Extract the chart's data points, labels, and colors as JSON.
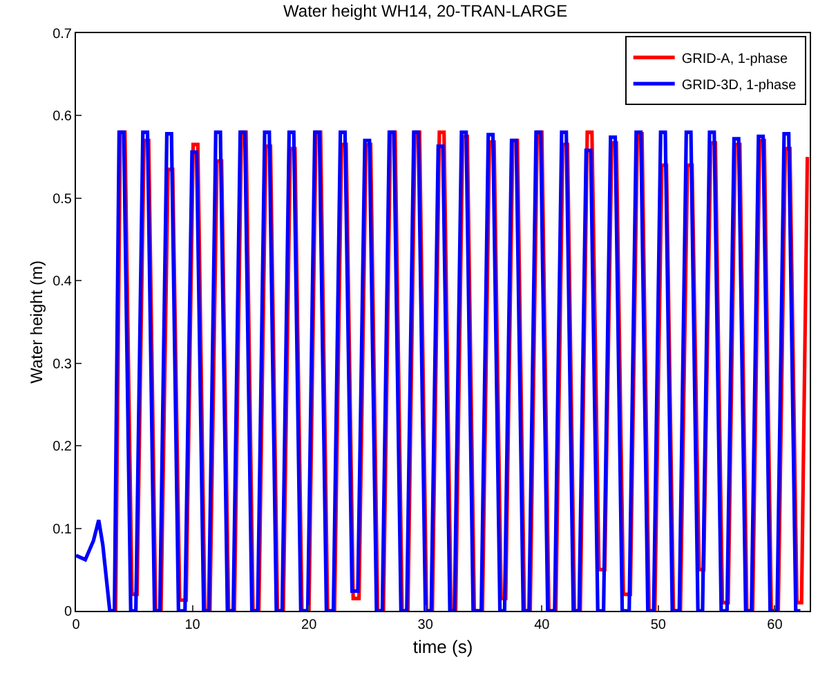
{
  "chart_data": {
    "type": "line",
    "title": "Water height WH14, 20-TRAN-LARGE",
    "xlabel": "time (s)",
    "ylabel": "Water height (m)",
    "xlim": [
      0,
      63
    ],
    "xticks": [
      0,
      10,
      20,
      30,
      40,
      50,
      60
    ],
    "ylim": [
      0,
      0.7
    ],
    "yticks": [
      0,
      0.1,
      0.2,
      0.3,
      0.4,
      0.5,
      0.6,
      0.7
    ],
    "legend": "top right",
    "marker": "none",
    "line_style": "solid",
    "series": [
      {
        "name": "GRID-A, 1-phase",
        "color": "#ff0000",
        "x": [
          2.9,
          3.4,
          3.8,
          4.2,
          4.8,
          5.24,
          5.84,
          6.24,
          6.84,
          7.3,
          7.9,
          8.3,
          8.9,
          9.46,
          10.06,
          10.46,
          11.06,
          11.5,
          12.1,
          12.5,
          13.1,
          13.6,
          14.2,
          14.6,
          15.2,
          15.7,
          16.3,
          16.7,
          17.3,
          17.8,
          18.4,
          18.8,
          19.4,
          20.0,
          20.6,
          21.0,
          21.6,
          22.2,
          22.8,
          23.2,
          23.8,
          24.3,
          24.9,
          25.3,
          25.9,
          26.4,
          27.0,
          27.4,
          28.0,
          28.5,
          29.1,
          29.5,
          30.1,
          30.6,
          31.2,
          31.6,
          32.2,
          32.6,
          33.2,
          33.6,
          34.2,
          34.9,
          35.5,
          35.9,
          36.5,
          36.9,
          37.5,
          37.9,
          38.5,
          39.0,
          39.6,
          40.0,
          40.6,
          41.2,
          41.8,
          42.2,
          42.8,
          43.3,
          43.9,
          44.3,
          44.9,
          45.4,
          46.0,
          46.4,
          47.0,
          47.6,
          48.2,
          48.6,
          49.2,
          49.7,
          50.3,
          50.7,
          51.3,
          51.9,
          52.5,
          52.9,
          53.5,
          53.9,
          54.5,
          54.9,
          55.5,
          56.0,
          56.6,
          57.0,
          57.6,
          58.1,
          58.7,
          59.1,
          59.7,
          60.3,
          60.9,
          61.3,
          61.9,
          62.3,
          62.8
        ],
        "values": [
          0,
          0,
          0.58,
          0.58,
          0.02,
          0.02,
          0.57,
          0.57,
          0,
          0,
          0.535,
          0.535,
          0.013,
          0.013,
          0.565,
          0.565,
          0,
          0,
          0.545,
          0.545,
          0,
          0,
          0.58,
          0.58,
          0,
          0,
          0.563,
          0.563,
          0,
          0,
          0.56,
          0.56,
          0,
          0,
          0.58,
          0.58,
          0,
          0,
          0.565,
          0.565,
          0.015,
          0.015,
          0.565,
          0.565,
          0,
          0,
          0.58,
          0.58,
          0,
          0,
          0.58,
          0.58,
          0,
          0,
          0.58,
          0.58,
          0,
          0,
          0.575,
          0.575,
          0,
          0,
          0.568,
          0.568,
          0.015,
          0.015,
          0.57,
          0.57,
          0,
          0,
          0.58,
          0.58,
          0,
          0,
          0.565,
          0.565,
          0,
          0,
          0.58,
          0.58,
          0.05,
          0.05,
          0.567,
          0.567,
          0.02,
          0.02,
          0.578,
          0.578,
          0,
          0,
          0.54,
          0.54,
          0,
          0,
          0.54,
          0.54,
          0.05,
          0.05,
          0.567,
          0.567,
          0.01,
          0.01,
          0.565,
          0.565,
          0,
          0,
          0.57,
          0.57,
          0,
          0,
          0.56,
          0.56,
          0.01,
          0.01,
          0.55
        ]
      },
      {
        "name": "GRID-3D, 1-phase",
        "color": "#0000ff",
        "x": [
          0,
          0.8,
          1.5,
          1.95,
          2.3,
          2.9,
          3.3,
          3.7,
          4.1,
          4.7,
          5.14,
          5.74,
          6.14,
          6.74,
          7.2,
          7.8,
          8.2,
          8.8,
          9.36,
          9.96,
          10.36,
          10.96,
          11.4,
          12.0,
          12.4,
          13.0,
          13.5,
          14.1,
          14.5,
          15.1,
          15.6,
          16.2,
          16.6,
          17.2,
          17.7,
          18.3,
          18.7,
          19.3,
          19.9,
          20.5,
          20.9,
          21.5,
          22.1,
          22.7,
          23.1,
          23.7,
          24.2,
          24.8,
          25.2,
          25.8,
          26.3,
          26.9,
          27.3,
          27.9,
          28.4,
          29.0,
          29.4,
          30.0,
          30.5,
          31.1,
          31.5,
          32.1,
          32.5,
          33.1,
          33.5,
          34.1,
          34.8,
          35.4,
          35.8,
          36.4,
          36.8,
          37.4,
          37.8,
          38.4,
          38.9,
          39.5,
          39.9,
          40.5,
          41.1,
          41.7,
          42.1,
          42.7,
          43.2,
          43.8,
          44.2,
          44.8,
          45.3,
          45.9,
          46.3,
          46.9,
          47.5,
          48.1,
          48.5,
          49.1,
          49.6,
          50.2,
          50.6,
          51.2,
          51.8,
          52.4,
          52.8,
          53.4,
          53.8,
          54.4,
          54.8,
          55.4,
          55.9,
          56.5,
          56.9,
          57.5,
          58.0,
          58.6,
          59.0,
          59.6,
          60.2,
          60.8,
          61.2,
          61.8,
          62.2
        ],
        "values": [
          0.067,
          0.062,
          0.085,
          0.11,
          0.08,
          0,
          0,
          0.58,
          0.58,
          0,
          0,
          0.58,
          0.58,
          0,
          0,
          0.578,
          0.578,
          0,
          0,
          0.556,
          0.556,
          0,
          0,
          0.58,
          0.58,
          0,
          0,
          0.58,
          0.58,
          0,
          0,
          0.58,
          0.58,
          0,
          0,
          0.58,
          0.58,
          0,
          0,
          0.58,
          0.58,
          0,
          0,
          0.58,
          0.58,
          0.024,
          0.024,
          0.57,
          0.57,
          0,
          0,
          0.58,
          0.58,
          0,
          0,
          0.58,
          0.58,
          0,
          0,
          0.563,
          0.563,
          0,
          0,
          0.58,
          0.58,
          0,
          0,
          0.577,
          0.577,
          0,
          0,
          0.57,
          0.57,
          0,
          0,
          0.58,
          0.58,
          0,
          0,
          0.58,
          0.58,
          0,
          0,
          0.558,
          0.558,
          0,
          0,
          0.574,
          0.574,
          0,
          0,
          0.58,
          0.58,
          0,
          0,
          0.58,
          0.58,
          0,
          0,
          0.58,
          0.58,
          0,
          0,
          0.58,
          0.58,
          0,
          0,
          0.572,
          0.572,
          0,
          0,
          0.575,
          0.575,
          0,
          0,
          0.578,
          0.578,
          0,
          0
        ]
      }
    ]
  }
}
